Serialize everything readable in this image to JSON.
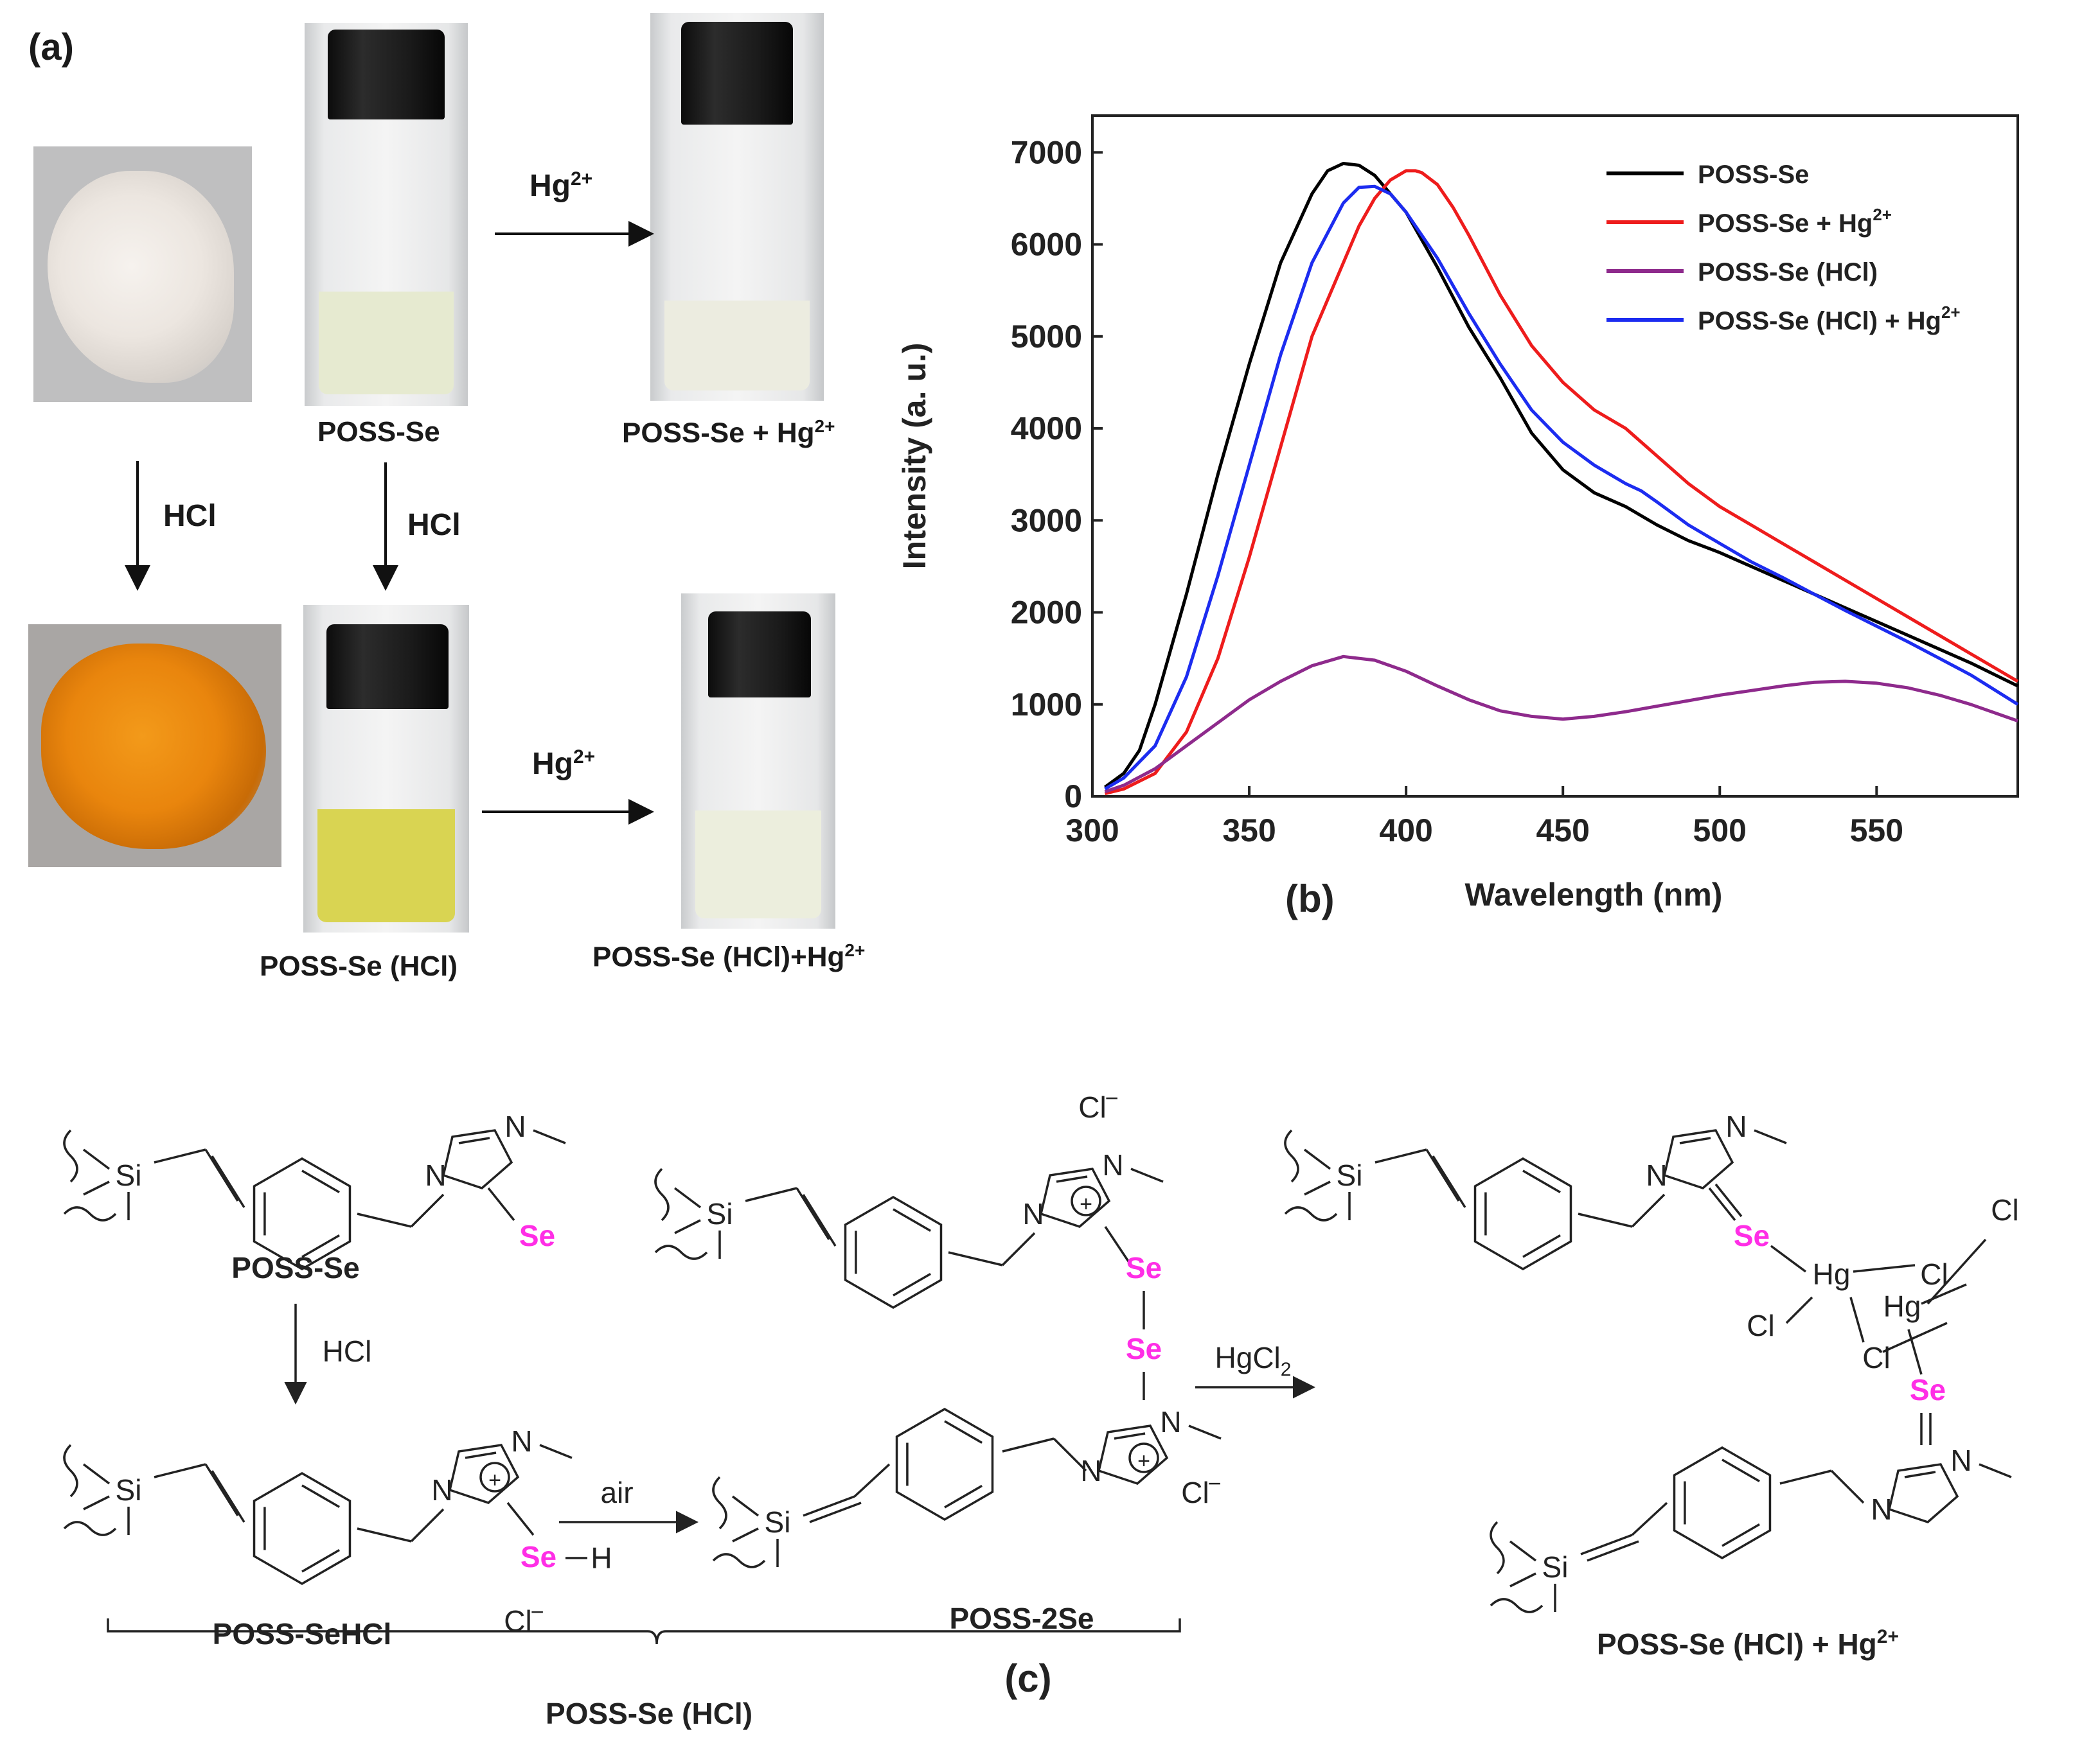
{
  "panel_a": {
    "label": "(a)",
    "vial_labels": {
      "poss_se": "POSS-Se",
      "poss_se_hg": "POSS-Se + Hg",
      "poss_se_hcl": "POSS-Se (HCl)",
      "poss_se_hcl_hg": "POSS-Se (HCl)+Hg"
    },
    "hg_superscript": "2+",
    "arrows": {
      "hg": "Hg",
      "hg_sup": "2+",
      "hcl": "HCl"
    },
    "colors": {
      "white_powder": "#e8e4df",
      "orange_powder": "#e9850d",
      "clear_liquid": "#ecefd8",
      "yellow_liquid": "#dcd65a"
    }
  },
  "panel_b": {
    "label": "(b)",
    "chart_data": {
      "type": "line",
      "xlabel": "Wavelength (nm)",
      "ylabel": "Intensity (a. u.)",
      "xlim": [
        300,
        595
      ],
      "ylim": [
        0,
        7400
      ],
      "xticks": [
        300,
        350,
        400,
        450,
        500,
        550
      ],
      "yticks": [
        0,
        1000,
        2000,
        3000,
        4000,
        5000,
        6000,
        7000
      ],
      "legend_position": "top-right",
      "series": [
        {
          "name": "POSS-Se",
          "sup": "",
          "color": "#000000",
          "x": [
            304,
            310,
            315,
            320,
            330,
            340,
            350,
            360,
            370,
            375,
            380,
            385,
            390,
            400,
            410,
            420,
            430,
            440,
            450,
            460,
            470,
            475,
            480,
            490,
            500,
            510,
            520,
            530,
            540,
            550,
            560,
            570,
            580,
            595
          ],
          "y": [
            100,
            250,
            500,
            1000,
            2200,
            3500,
            4700,
            5800,
            6550,
            6800,
            6880,
            6860,
            6750,
            6350,
            5750,
            5100,
            4550,
            3950,
            3550,
            3300,
            3150,
            3050,
            2950,
            2780,
            2650,
            2500,
            2350,
            2200,
            2050,
            1900,
            1750,
            1600,
            1450,
            1200
          ]
        },
        {
          "name": "POSS-Se + Hg",
          "sup": "2+",
          "color": "#ee1c1c",
          "x": [
            304,
            310,
            320,
            330,
            340,
            350,
            360,
            370,
            380,
            385,
            390,
            395,
            400,
            403,
            405,
            410,
            415,
            420,
            430,
            440,
            450,
            460,
            470,
            475,
            480,
            490,
            500,
            510,
            520,
            530,
            540,
            550,
            560,
            570,
            580,
            595
          ],
          "y": [
            30,
            80,
            250,
            700,
            1500,
            2600,
            3800,
            5000,
            5800,
            6200,
            6500,
            6700,
            6800,
            6800,
            6780,
            6650,
            6400,
            6100,
            5450,
            4900,
            4500,
            4200,
            4000,
            3850,
            3700,
            3400,
            3150,
            2950,
            2750,
            2550,
            2350,
            2150,
            1950,
            1750,
            1550,
            1250
          ]
        },
        {
          "name": "POSS-Se (HCl)",
          "sup": "",
          "color": "#8e2a8c",
          "x": [
            304,
            310,
            320,
            330,
            340,
            350,
            360,
            370,
            380,
            390,
            400,
            410,
            420,
            430,
            440,
            450,
            460,
            470,
            480,
            490,
            500,
            510,
            520,
            530,
            540,
            550,
            560,
            570,
            580,
            595
          ],
          "y": [
            50,
            120,
            300,
            550,
            800,
            1050,
            1250,
            1420,
            1520,
            1480,
            1360,
            1200,
            1050,
            930,
            870,
            840,
            870,
            920,
            980,
            1040,
            1100,
            1150,
            1200,
            1240,
            1250,
            1230,
            1180,
            1100,
            1000,
            820
          ]
        },
        {
          "name": "POSS-Se (HCl) + Hg",
          "sup": "2+",
          "color": "#1c2cf0",
          "x": [
            304,
            310,
            320,
            330,
            340,
            350,
            360,
            370,
            380,
            385,
            390,
            395,
            400,
            410,
            420,
            430,
            440,
            450,
            460,
            470,
            475,
            480,
            490,
            500,
            510,
            520,
            530,
            540,
            550,
            560,
            570,
            580,
            595
          ],
          "y": [
            80,
            200,
            550,
            1300,
            2400,
            3600,
            4800,
            5800,
            6450,
            6620,
            6630,
            6550,
            6350,
            5850,
            5250,
            4700,
            4200,
            3850,
            3600,
            3400,
            3320,
            3200,
            2950,
            2750,
            2550,
            2380,
            2200,
            2020,
            1850,
            1680,
            1500,
            1320,
            1000
          ]
        }
      ]
    }
  },
  "panel_c": {
    "label": "(c)",
    "names": {
      "poss_se": "POSS-Se",
      "poss_se_hcl_short": "POSS-SeHCl",
      "poss_2se": "POSS-2Se",
      "poss_se_hcl_group": "POSS-Se (HCl)",
      "product": "POSS-Se (HCl) + Hg",
      "product_sup": "2+"
    },
    "reagents": {
      "hcl": "HCl",
      "air": "air",
      "hgcl2": "HgCl",
      "hgcl2_sub": "2"
    },
    "atoms": {
      "si": "Si",
      "n": "N",
      "se": "Se",
      "h": "H",
      "hg": "Hg",
      "cl": "Cl",
      "chloride": "Cl",
      "minus": "−",
      "plus": "+"
    },
    "se_color": "#ff2ee6"
  }
}
